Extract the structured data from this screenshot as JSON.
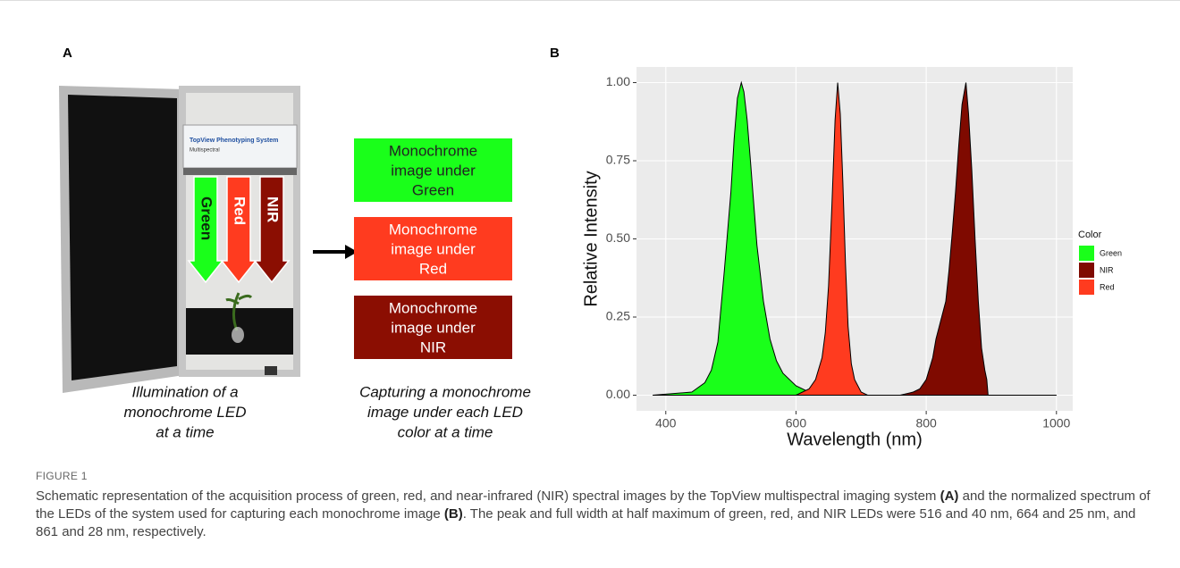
{
  "panel_a": {
    "label": "A",
    "device_title": "TopView Phenotyping System",
    "device_subtitle": "Multispectral",
    "arrows": [
      "Green",
      "Red",
      "NIR"
    ],
    "boxes": [
      {
        "lines": [
          "Monochrome",
          "image under",
          "Green"
        ],
        "color": "#1aff1a"
      },
      {
        "lines": [
          "Monochrome",
          "image under",
          "Red"
        ],
        "color": "#ff3b1f"
      },
      {
        "lines": [
          "Monochrome",
          "image under",
          "NIR"
        ],
        "color": "#8b0e02"
      }
    ],
    "left_caption": [
      "Illumination of a",
      "monochrome LED",
      "at a time"
    ],
    "right_caption": [
      "Capturing a monochrome",
      "image under each LED",
      "color at a time"
    ]
  },
  "chart_data": {
    "type": "area",
    "panel_label": "B",
    "x_label": "Wavelength (nm)",
    "y_label": "Relative Intensity",
    "legend_title": "Color",
    "legend": "right",
    "grid": true,
    "xlim": [
      355,
      1025
    ],
    "ylim": [
      -0.05,
      1.05
    ],
    "xticks": [
      400,
      600,
      800,
      1000
    ],
    "yticks": [
      {
        "value": 0,
        "label": "0.00"
      },
      {
        "value": 0.25,
        "label": "0.25"
      },
      {
        "value": 0.5,
        "label": "0.50"
      },
      {
        "value": 0.75,
        "label": "0.75"
      },
      {
        "value": 1,
        "label": "1.00"
      }
    ],
    "series": [
      {
        "name": "Green",
        "color": "#1aff1a",
        "x": [
          380,
          440,
          460,
          470,
          480,
          490,
          500,
          505,
          510,
          516,
          520,
          525,
          530,
          540,
          550,
          560,
          570,
          580,
          600,
          620,
          640,
          1000
        ],
        "values": [
          0,
          0.01,
          0.04,
          0.08,
          0.17,
          0.4,
          0.65,
          0.82,
          0.95,
          1,
          0.97,
          0.88,
          0.75,
          0.48,
          0.3,
          0.18,
          0.11,
          0.07,
          0.03,
          0.01,
          0,
          0
        ]
      },
      {
        "name": "NIR",
        "color": "#7f0a00",
        "x": [
          380,
          760,
          780,
          790,
          800,
          810,
          815,
          820,
          825,
          830,
          835,
          840,
          845,
          850,
          855,
          861,
          865,
          870,
          875,
          880,
          885,
          890,
          893,
          895,
          1000
        ],
        "values": [
          0,
          0,
          0.01,
          0.02,
          0.05,
          0.12,
          0.18,
          0.22,
          0.26,
          0.3,
          0.4,
          0.52,
          0.65,
          0.8,
          0.93,
          1,
          0.9,
          0.72,
          0.5,
          0.3,
          0.15,
          0.08,
          0.05,
          0,
          0
        ]
      },
      {
        "name": "Red",
        "color": "#ff3b1f",
        "x": [
          600,
          620,
          630,
          640,
          645,
          650,
          655,
          660,
          664,
          668,
          672,
          676,
          680,
          685,
          690,
          700,
          710
        ],
        "values": [
          0,
          0.02,
          0.05,
          0.12,
          0.2,
          0.35,
          0.6,
          0.88,
          1,
          0.9,
          0.68,
          0.42,
          0.22,
          0.1,
          0.05,
          0.01,
          0
        ]
      }
    ]
  },
  "caption": {
    "figure_no": "FIGURE 1",
    "parts": [
      "Schematic representation of the acquisition process of green, red, and near-infrared (NIR) spectral images by the TopView multispectral imaging system ",
      "(A)",
      " and the normalized spectrum of the LEDs of the system used for capturing each monochrome image ",
      "(B)",
      ". The peak and full width at half maximum of green, red, and NIR LEDs were 516 and 40 nm, 664 and 25 nm, and 861 and 28 nm, respectively."
    ]
  }
}
